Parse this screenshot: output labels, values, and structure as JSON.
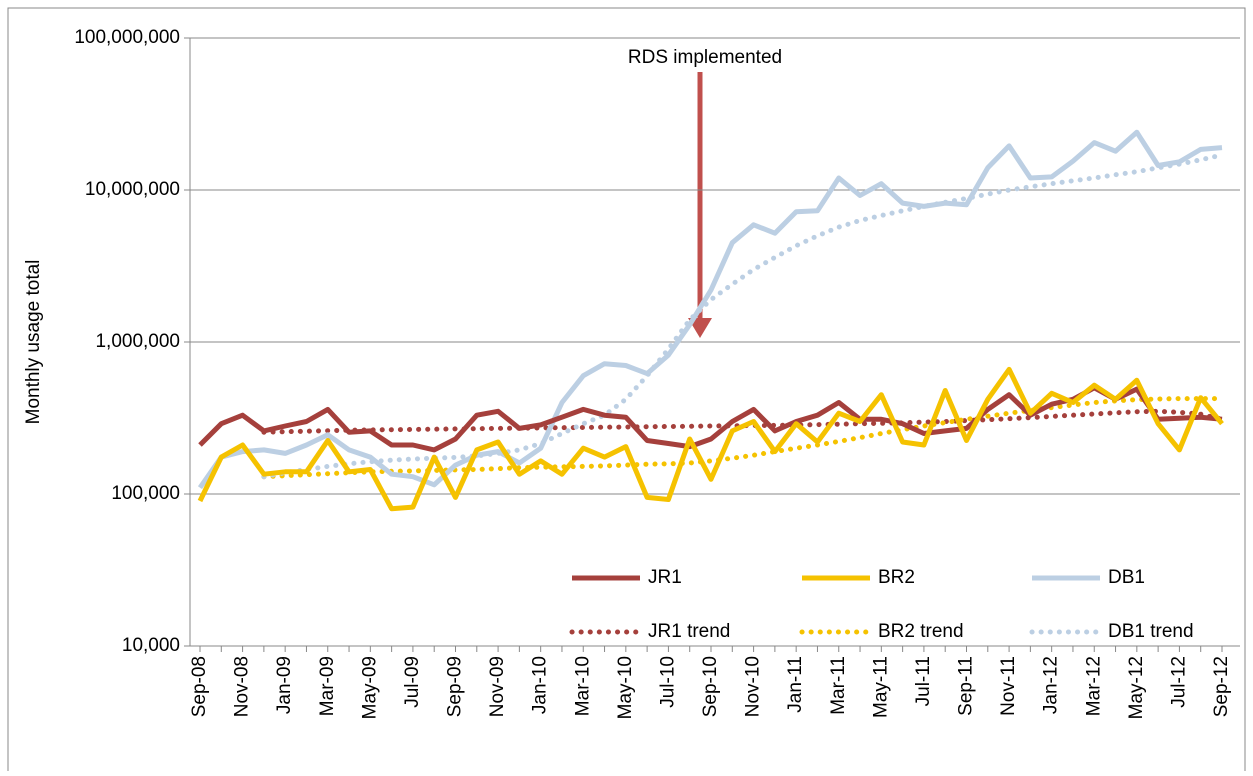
{
  "chart_data": {
    "type": "line",
    "y_label": "Monthly usage total",
    "log_scale": true,
    "grid": true,
    "legend_position": "lower right",
    "annotation": "RDS implemented",
    "categories": [
      "Sep-08",
      null,
      "Nov-08",
      null,
      "Jan-09",
      null,
      "Mar-09",
      null,
      "May-09",
      null,
      "Jul-09",
      null,
      "Sep-09",
      null,
      "Nov-09",
      null,
      "Jan-10",
      null,
      "Mar-10",
      null,
      "May-10",
      null,
      "Jul-10",
      null,
      "Sep-10",
      null,
      "Nov-10",
      null,
      "Jan-11",
      null,
      "Mar-11",
      null,
      "May-11",
      null,
      "Jul-11",
      null,
      "Sep-11",
      null,
      "Nov-11",
      null,
      "Jan-12",
      null,
      "Mar-12",
      null,
      "May-12",
      null,
      "Jul-12",
      null,
      "Sep-12"
    ],
    "ylim": [
      10000,
      100000000
    ],
    "yticks": [
      {
        "value": 10000,
        "label": "10,000"
      },
      {
        "value": 100000,
        "label": "100,000"
      },
      {
        "value": 1000000,
        "label": "1,000,000"
      },
      {
        "value": 10000000,
        "label": "10,000,000"
      },
      {
        "value": 100000000,
        "label": "100,000,000"
      }
    ],
    "series": [
      {
        "name": "JR1",
        "color": "#a5403c",
        "style": "solid",
        "values": [
          210000,
          290000,
          330000,
          260000,
          280000,
          300000,
          360000,
          255000,
          260000,
          210000,
          210000,
          195000,
          230000,
          330000,
          350000,
          270000,
          285000,
          320000,
          360000,
          330000,
          320000,
          225000,
          215000,
          205000,
          230000,
          300000,
          360000,
          260000,
          300000,
          330000,
          400000,
          310000,
          310000,
          290000,
          250000,
          260000,
          270000,
          360000,
          450000,
          330000,
          390000,
          420000,
          500000,
          420000,
          490000,
          310000,
          315000,
          320000,
          310000
        ]
      },
      {
        "name": "BR2",
        "color": "#f5c200",
        "style": "solid",
        "values": [
          90000,
          175000,
          210000,
          135000,
          140000,
          140000,
          225000,
          140000,
          145000,
          80000,
          82000,
          175000,
          95000,
          195000,
          220000,
          135000,
          165000,
          135000,
          200000,
          175000,
          205000,
          95000,
          92000,
          230000,
          125000,
          260000,
          300000,
          190000,
          290000,
          220000,
          340000,
          300000,
          450000,
          220000,
          210000,
          480000,
          225000,
          420000,
          660000,
          340000,
          460000,
          400000,
          520000,
          420000,
          560000,
          290000,
          195000,
          430000,
          290000
        ]
      },
      {
        "name": "DB1",
        "color": "#bccfe3",
        "style": "solid",
        "values": [
          110000,
          175000,
          190000,
          195000,
          185000,
          210000,
          245000,
          195000,
          175000,
          135000,
          130000,
          115000,
          155000,
          180000,
          190000,
          160000,
          200000,
          400000,
          600000,
          720000,
          700000,
          620000,
          820000,
          1300000,
          2200000,
          4500000,
          5900000,
          5200000,
          7200000,
          7300000,
          12000000,
          9200000,
          11000000,
          8200000,
          7800000,
          8200000,
          8000000,
          14000000,
          19500000,
          12000000,
          12200000,
          15500000,
          20500000,
          18000000,
          24000000,
          14500000,
          15300000,
          18500000,
          19000000
        ]
      },
      {
        "name": "JR1 trend",
        "color": "#a5403c",
        "style": "dotted",
        "values": [
          null,
          null,
          null,
          255000,
          257000,
          259000,
          261000,
          263000,
          264000,
          265000,
          266000,
          267000,
          268000,
          269000,
          270000,
          271000,
          272000,
          273000,
          274000,
          275000,
          276000,
          277000,
          278000,
          279000,
          280000,
          281000,
          282000,
          283000,
          284000,
          286000,
          288000,
          290000,
          292000,
          294000,
          297000,
          300000,
          304000,
          308000,
          313000,
          318000,
          324000,
          330000,
          336000,
          342000,
          348000,
          350000,
          345000,
          335000,
          310000
        ]
      },
      {
        "name": "BR2 trend",
        "color": "#f5c200",
        "style": "dotted",
        "values": [
          null,
          null,
          null,
          130000,
          132000,
          134000,
          136000,
          138000,
          140000,
          141000,
          142000,
          143000,
          144000,
          145000,
          147000,
          149000,
          150000,
          151000,
          152000,
          153000,
          155000,
          157000,
          158000,
          160000,
          165000,
          172000,
          180000,
          190000,
          200000,
          210000,
          222000,
          235000,
          250000,
          265000,
          280000,
          295000,
          310000,
          325000,
          340000,
          355000,
          370000,
          385000,
          400000,
          410000,
          418000,
          422000,
          424000,
          424000,
          424000
        ]
      },
      {
        "name": "DB1 trend",
        "color": "#bccfe3",
        "style": "dotted",
        "values": [
          null,
          null,
          null,
          130000,
          138000,
          145000,
          152000,
          158000,
          163000,
          167000,
          170000,
          172000,
          174000,
          178000,
          185000,
          195000,
          215000,
          250000,
          290000,
          330000,
          420000,
          600000,
          900000,
          1400000,
          1900000,
          2400000,
          3000000,
          3600000,
          4300000,
          5000000,
          5700000,
          6300000,
          6800000,
          7300000,
          7800000,
          8300000,
          8800000,
          9400000,
          10000000,
          10500000,
          11000000,
          11500000,
          12000000,
          12600000,
          13200000,
          14000000,
          14800000,
          15800000,
          17000000
        ]
      }
    ]
  }
}
